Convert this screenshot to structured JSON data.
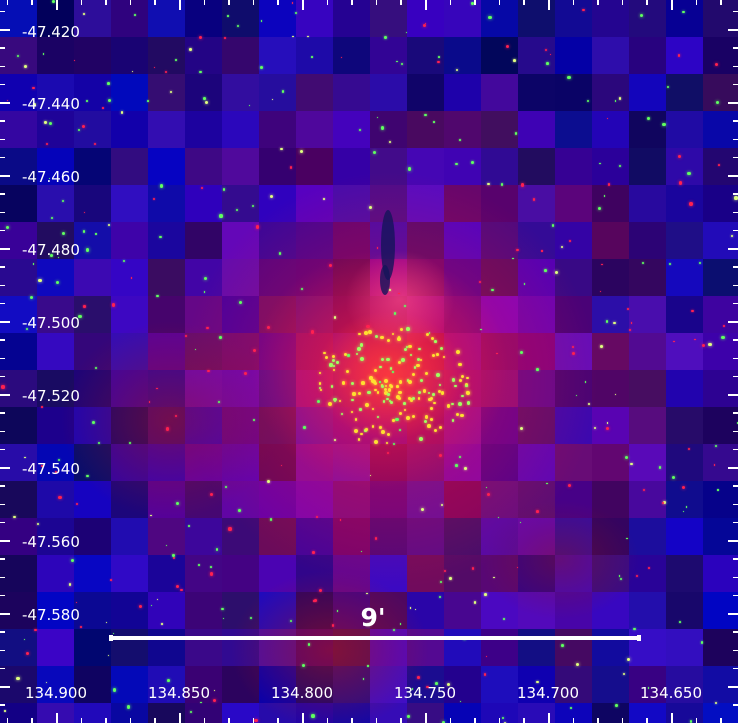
{
  "image": {
    "axes": {
      "x_ticks": [
        "134.900",
        "134.850",
        "134.800",
        "134.750",
        "134.700",
        "134.650"
      ],
      "y_ticks": [
        "-47.420",
        "-47.440",
        "-47.460",
        "-47.480",
        "-47.500",
        "-47.520",
        "-47.540",
        "-47.560",
        "-47.580"
      ],
      "x_minor_step": 0.01,
      "y_minor_step": 0.005,
      "tick_color": "#ffffff"
    },
    "scale_bar": {
      "label": "9'",
      "color": "#ffffff"
    },
    "colors": {
      "background": "#12128a",
      "nebula": "#ff2040",
      "core": "#ff4030",
      "stars_green": "#60ff60",
      "stars_red": "#ff2050"
    }
  }
}
